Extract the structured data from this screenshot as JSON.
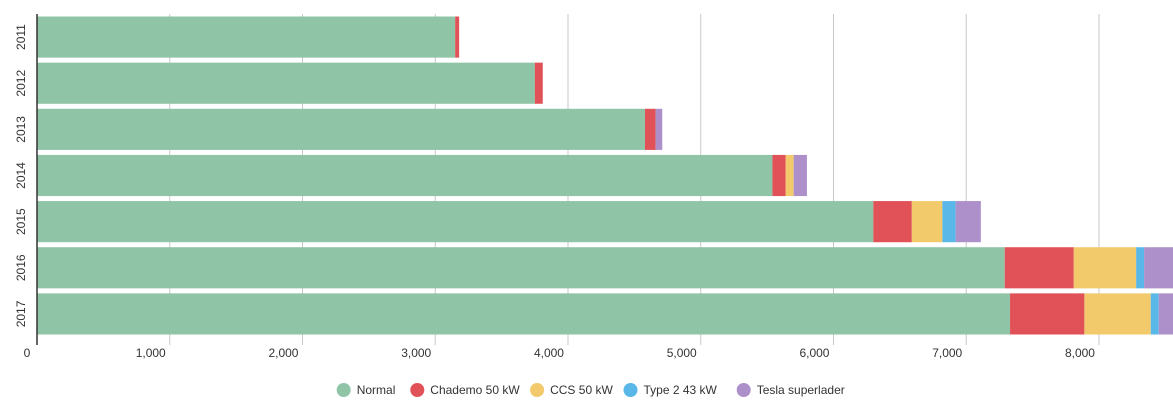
{
  "chart_data": {
    "type": "bar",
    "orientation": "horizontal",
    "stacked": true,
    "categories": [
      "2011",
      "2012",
      "2013",
      "2014",
      "2015",
      "2016",
      "2017"
    ],
    "series": [
      {
        "name": "Normal",
        "color": "#8fc4a7",
        "values": [
          3150,
          3750,
          4580,
          5540,
          6300,
          7290,
          7330
        ]
      },
      {
        "name": "Chademo 50 kW",
        "color": "#e05257",
        "values": [
          30,
          60,
          80,
          100,
          290,
          520,
          560
        ]
      },
      {
        "name": "CCS 50 kW",
        "color": "#f2ca6b",
        "values": [
          0,
          0,
          0,
          60,
          230,
          470,
          500
        ]
      },
      {
        "name": "Type 2 43 kW",
        "color": "#5ab8e8",
        "values": [
          0,
          0,
          0,
          0,
          100,
          60,
          60
        ]
      },
      {
        "name": "Tesla superlader",
        "color": "#ad8fc9",
        "values": [
          0,
          0,
          50,
          100,
          190,
          230,
          240
        ]
      }
    ],
    "x_ticks": [
      0,
      1000,
      2000,
      3000,
      4000,
      5000,
      6000,
      7000,
      8000
    ],
    "x_tick_labels": [
      "0",
      "1,000",
      "2,000",
      "3,000",
      "4,000",
      "5,000",
      "6,000",
      "7,000",
      "8,000"
    ],
    "xlim": [
      0,
      8550
    ],
    "grid": true,
    "legend_position": "bottom-center"
  }
}
